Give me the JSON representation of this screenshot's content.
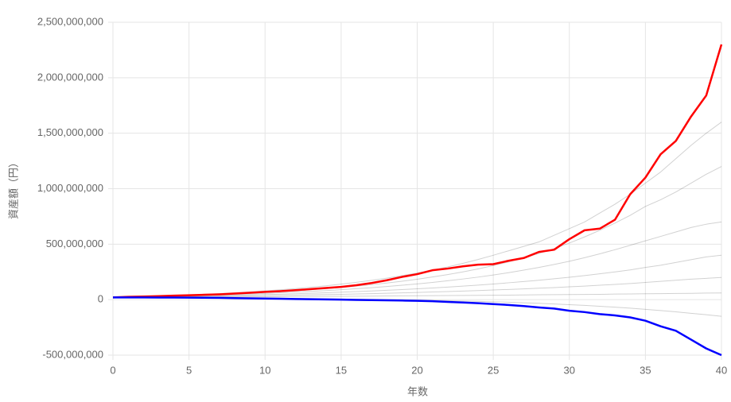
{
  "chart_data": {
    "type": "line",
    "x_label": "年数",
    "y_label": "資産額（円）",
    "x": [
      0,
      1,
      2,
      3,
      4,
      5,
      6,
      7,
      8,
      9,
      10,
      11,
      12,
      13,
      14,
      15,
      16,
      17,
      18,
      19,
      20,
      21,
      22,
      23,
      24,
      25,
      26,
      27,
      28,
      29,
      30,
      31,
      32,
      33,
      34,
      35,
      36,
      37,
      38,
      39,
      40
    ],
    "xlim": [
      0,
      40
    ],
    "xticks": [
      0,
      5,
      10,
      15,
      20,
      25,
      30,
      35,
      40
    ],
    "ylim": [
      -500000000,
      2500000000
    ],
    "yticks": [
      {
        "value": -500000000,
        "label": "-500,000,000"
      },
      {
        "value": 0,
        "label": "0"
      },
      {
        "value": 500000000,
        "label": "500,000,000"
      },
      {
        "value": 1000000000,
        "label": "1,000,000,000"
      },
      {
        "value": 1500000000,
        "label": "1,500,000,000"
      },
      {
        "value": 2000000000,
        "label": "2,000,000,000"
      },
      {
        "value": 2500000000,
        "label": "2,500,000,000"
      }
    ],
    "grid": true,
    "series": [
      {
        "color": "rgba(0,0,0,0.18)",
        "values": [
          20000000,
          24000000,
          28000000,
          32000000,
          37000000,
          42000000,
          48000000,
          55000000,
          62000000,
          70000000,
          79000000,
          89000000,
          100000000,
          112000000,
          125000000,
          140000000,
          156000000,
          174000000,
          194000000,
          216000000,
          240000000,
          266000000,
          295000000,
          327000000,
          362000000,
          400000000,
          440000000,
          480000000,
          520000000,
          580000000,
          640000000,
          700000000,
          780000000,
          860000000,
          950000000,
          1050000000,
          1150000000,
          1270000000,
          1390000000,
          1500000000,
          1600000000
        ]
      },
      {
        "color": "rgba(0,0,0,0.18)",
        "values": [
          20000000,
          23000000,
          26000000,
          29000000,
          33000000,
          37000000,
          41000000,
          46000000,
          52000000,
          58000000,
          65000000,
          72000000,
          80000000,
          89000000,
          99000000,
          110000000,
          122000000,
          135000000,
          150000000,
          166000000,
          184000000,
          204000000,
          226000000,
          250000000,
          277000000,
          307000000,
          340000000,
          376000000,
          416000000,
          460000000,
          510000000,
          565000000,
          625000000,
          690000000,
          760000000,
          840000000,
          900000000,
          970000000,
          1050000000,
          1130000000,
          1200000000
        ]
      },
      {
        "color": "rgba(0,0,0,0.18)",
        "values": [
          20000000,
          22000000,
          25000000,
          28000000,
          31000000,
          34000000,
          38000000,
          42000000,
          46000000,
          51000000,
          56000000,
          62000000,
          68000000,
          75000000,
          82000000,
          90000000,
          99000000,
          108000000,
          118000000,
          130000000,
          142000000,
          155000000,
          170000000,
          186000000,
          203000000,
          222000000,
          243000000,
          266000000,
          290000000,
          317000000,
          346000000,
          378000000,
          413000000,
          450000000,
          490000000,
          530000000,
          570000000,
          610000000,
          650000000,
          680000000,
          700000000
        ]
      },
      {
        "color": "rgba(0,0,0,0.18)",
        "values": [
          20000000,
          22000000,
          24000000,
          26000000,
          28000000,
          31000000,
          33000000,
          36000000,
          39000000,
          42000000,
          46000000,
          49000000,
          53000000,
          58000000,
          62000000,
          67000000,
          73000000,
          78000000,
          84000000,
          91000000,
          98000000,
          105000000,
          113000000,
          122000000,
          131000000,
          141000000,
          152000000,
          163000000,
          175000000,
          188000000,
          202000000,
          217000000,
          233000000,
          250000000,
          268000000,
          290000000,
          310000000,
          335000000,
          360000000,
          385000000,
          400000000
        ]
      },
      {
        "color": "rgba(0,0,0,0.18)",
        "values": [
          20000000,
          21000000,
          22000000,
          24000000,
          25000000,
          27000000,
          28000000,
          30000000,
          32000000,
          34000000,
          36000000,
          38000000,
          41000000,
          43000000,
          46000000,
          48000000,
          51000000,
          54000000,
          58000000,
          61000000,
          65000000,
          69000000,
          73000000,
          77000000,
          82000000,
          87000000,
          92000000,
          97000000,
          103000000,
          109000000,
          116000000,
          122000000,
          130000000,
          137000000,
          145000000,
          155000000,
          165000000,
          175000000,
          185000000,
          192000000,
          200000000
        ]
      },
      {
        "color": "rgba(0,0,0,0.18)",
        "values": [
          20000000,
          21000000,
          21000000,
          22000000,
          22000000,
          23000000,
          24000000,
          24000000,
          25000000,
          26000000,
          26000000,
          27000000,
          28000000,
          29000000,
          30000000,
          30000000,
          31000000,
          32000000,
          33000000,
          34000000,
          35000000,
          36000000,
          37000000,
          38000000,
          39000000,
          40000000,
          41000000,
          42000000,
          44000000,
          45000000,
          46000000,
          47000000,
          48000000,
          50000000,
          51000000,
          53000000,
          54000000,
          56000000,
          57000000,
          59000000,
          60000000
        ]
      },
      {
        "color": "rgba(0,0,0,0.18)",
        "values": [
          20000000,
          20000000,
          19000000,
          19000000,
          18000000,
          17000000,
          16000000,
          15000000,
          14000000,
          13000000,
          12000000,
          11000000,
          10000000,
          9000000,
          8000000,
          6000000,
          5000000,
          3000000,
          1000000,
          -1000000,
          -3000000,
          -6000000,
          -9000000,
          -12000000,
          -15000000,
          -19000000,
          -23000000,
          -28000000,
          -33000000,
          -39000000,
          -45000000,
          -52000000,
          -60000000,
          -68000000,
          -77000000,
          -87000000,
          -98000000,
          -110000000,
          -123000000,
          -136000000,
          -150000000
        ]
      },
      {
        "color": "#ff0000",
        "values": [
          20000000,
          25000000,
          28000000,
          32000000,
          36000000,
          40000000,
          44000000,
          48000000,
          55000000,
          62000000,
          70000000,
          76000000,
          85000000,
          95000000,
          105000000,
          115000000,
          130000000,
          150000000,
          175000000,
          205000000,
          230000000,
          265000000,
          280000000,
          300000000,
          315000000,
          320000000,
          350000000,
          375000000,
          430000000,
          450000000,
          545000000,
          625000000,
          640000000,
          720000000,
          950000000,
          1100000000,
          1310000000,
          1430000000,
          1650000000,
          1840000000,
          2300000000
        ]
      },
      {
        "color": "#0000ff",
        "values": [
          20000000,
          20000000,
          20000000,
          19000000,
          19000000,
          18000000,
          17000000,
          16000000,
          14000000,
          12000000,
          10000000,
          8000000,
          6000000,
          4000000,
          2000000,
          0,
          -2000000,
          -4000000,
          -6000000,
          -8000000,
          -10000000,
          -14000000,
          -20000000,
          -26000000,
          -32000000,
          -40000000,
          -48000000,
          -58000000,
          -70000000,
          -80000000,
          -100000000,
          -112000000,
          -130000000,
          -142000000,
          -160000000,
          -190000000,
          -240000000,
          -280000000,
          -360000000,
          -440000000,
          -500000000
        ]
      }
    ]
  }
}
